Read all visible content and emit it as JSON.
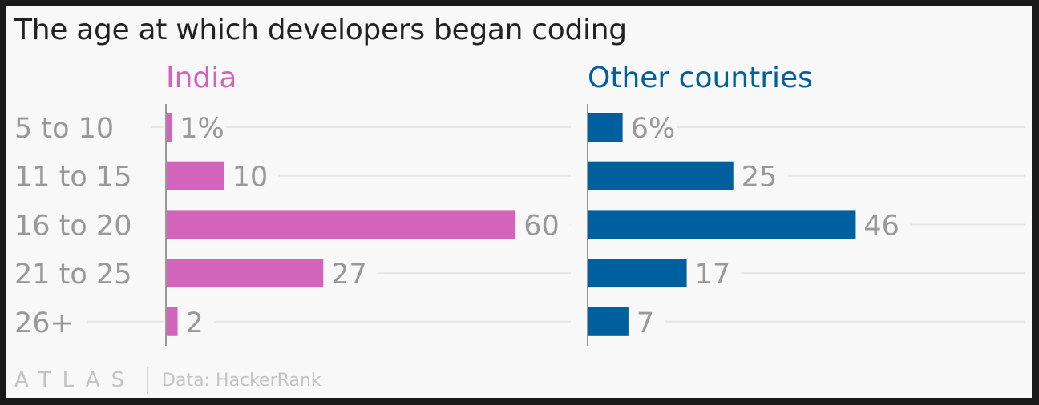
{
  "title": "The age at which developers began coding",
  "footer": {
    "logo": "ATLAS",
    "source": "Data: HackerRank"
  },
  "colors": {
    "india": "#d464bb",
    "other": "#005f9e",
    "text_gray": "#999999",
    "grid": "#e6e6e6"
  },
  "chart_data": {
    "type": "bar",
    "orientation": "horizontal",
    "title": "The age at which developers began coding",
    "categories": [
      "5 to 10",
      "11 to 15",
      "16 to 20",
      "21 to 25",
      "26+"
    ],
    "series": [
      {
        "name": "India",
        "values": [
          1,
          10,
          60,
          27,
          2
        ],
        "labels": [
          "1%",
          "10",
          "60",
          "27",
          "2"
        ]
      },
      {
        "name": "Other countries",
        "values": [
          6,
          25,
          46,
          17,
          7
        ],
        "labels": [
          "6%",
          "25",
          "46",
          "17",
          "7"
        ]
      }
    ],
    "xlim": [
      0,
      60
    ],
    "grid": true
  }
}
